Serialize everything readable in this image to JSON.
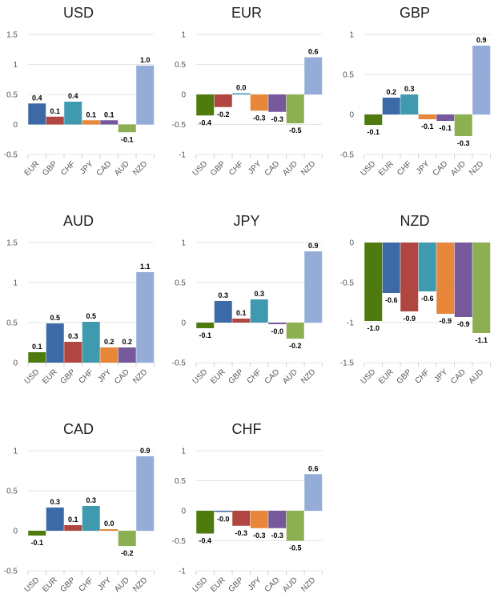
{
  "colors": {
    "USD": "#4f7a0e",
    "EUR": "#3d6aa6",
    "GBP": "#b0463f",
    "CHF": "#3f9ab0",
    "JPY": "#e8873a",
    "CAD": "#76599b",
    "AUD": "#8caf52",
    "NZD": "#94acd8"
  },
  "chart_data": [
    {
      "type": "bar",
      "title": "USD",
      "categories": [
        "EUR",
        "GBP",
        "CHF",
        "JPY",
        "CAD",
        "AUD",
        "NZD"
      ],
      "values": [
        0.35,
        0.13,
        0.38,
        0.07,
        0.07,
        -0.13,
        0.98
      ],
      "labels": [
        "0.4",
        "0.1",
        "0.4",
        "0.1",
        "0.1",
        "-0.1",
        "1.0"
      ],
      "ylim": [
        -0.5,
        1.5
      ],
      "ticks": [
        "-0.5",
        "0",
        "0.5",
        "1",
        "1.5"
      ],
      "tick_values": [
        -0.5,
        0,
        0.5,
        1,
        1.5
      ]
    },
    {
      "type": "bar",
      "title": "EUR",
      "categories": [
        "USD",
        "GBP",
        "CHF",
        "JPY",
        "CAD",
        "AUD",
        "NZD"
      ],
      "values": [
        -0.35,
        -0.21,
        0.02,
        -0.27,
        -0.29,
        -0.48,
        0.62
      ],
      "labels": [
        "-0.4",
        "-0.2",
        "0.0",
        "-0.3",
        "-0.3",
        "-0.5",
        "0.6"
      ],
      "ylim": [
        -1,
        1
      ],
      "ticks": [
        "-1",
        "-0.5",
        "0",
        "0.5",
        "1"
      ],
      "tick_values": [
        -1,
        -0.5,
        0,
        0.5,
        1
      ]
    },
    {
      "type": "bar",
      "title": "GBP",
      "categories": [
        "USD",
        "EUR",
        "CHF",
        "JPY",
        "CAD",
        "AUD",
        "NZD"
      ],
      "values": [
        -0.13,
        0.21,
        0.25,
        -0.06,
        -0.08,
        -0.27,
        0.86
      ],
      "labels": [
        "-0.1",
        "0.2",
        "0.3",
        "-0.1",
        "-0.1",
        "-0.3",
        "0.9"
      ],
      "ylim": [
        -0.5,
        1
      ],
      "ticks": [
        "-0.5",
        "0",
        "0.5",
        "1"
      ],
      "tick_values": [
        -0.5,
        0,
        0.5,
        1
      ]
    },
    {
      "type": "bar",
      "title": "AUD",
      "categories": [
        "USD",
        "EUR",
        "GBP",
        "CHF",
        "JPY",
        "CAD",
        "NZD"
      ],
      "values": [
        0.13,
        0.49,
        0.26,
        0.51,
        0.19,
        0.19,
        1.13
      ],
      "labels": [
        "0.1",
        "0.5",
        "0.3",
        "0.5",
        "0.2",
        "0.2",
        "1.1"
      ],
      "ylim": [
        0,
        1.5
      ],
      "ticks": [
        "0",
        "0.5",
        "1",
        "1.5"
      ],
      "tick_values": [
        0,
        0.5,
        1,
        1.5
      ]
    },
    {
      "type": "bar",
      "title": "JPY",
      "categories": [
        "USD",
        "EUR",
        "GBP",
        "CHF",
        "CAD",
        "AUD",
        "NZD"
      ],
      "values": [
        -0.07,
        0.27,
        0.05,
        0.29,
        -0.02,
        -0.2,
        0.89
      ],
      "labels": [
        "-0.1",
        "0.3",
        "0.1",
        "0.3",
        "-0.0",
        "-0.2",
        "0.9"
      ],
      "ylim": [
        -0.5,
        1
      ],
      "ticks": [
        "-0.5",
        "0",
        "0.5",
        "1"
      ],
      "tick_values": [
        -0.5,
        0,
        0.5,
        1
      ]
    },
    {
      "type": "bar",
      "title": "NZD",
      "categories": [
        "USD",
        "EUR",
        "GBP",
        "CHF",
        "JPY",
        "CAD",
        "AUD"
      ],
      "values": [
        -0.98,
        -0.63,
        -0.86,
        -0.61,
        -0.89,
        -0.93,
        -1.13
      ],
      "labels": [
        "-1.0",
        "-0.6",
        "-0.9",
        "-0.6",
        "-0.9",
        "-0.9",
        "-1.1"
      ],
      "ylim": [
        -1.5,
        0
      ],
      "ticks": [
        "-1.5",
        "-1",
        "-0.5",
        "0"
      ],
      "tick_values": [
        -1.5,
        -1,
        -0.5,
        0
      ]
    },
    {
      "type": "bar",
      "title": "CAD",
      "categories": [
        "USD",
        "EUR",
        "GBP",
        "CHF",
        "JPY",
        "AUD",
        "NZD"
      ],
      "values": [
        -0.06,
        0.29,
        0.07,
        0.31,
        0.02,
        -0.19,
        0.93
      ],
      "labels": [
        "-0.1",
        "0.3",
        "0.1",
        "0.3",
        "0.0",
        "-0.2",
        "0.9"
      ],
      "ylim": [
        -0.5,
        1
      ],
      "ticks": [
        "-0.5",
        "0",
        "0.5",
        "1"
      ],
      "tick_values": [
        -0.5,
        0,
        0.5,
        1
      ]
    },
    {
      "type": "bar",
      "title": "CHF",
      "categories": [
        "USD",
        "EUR",
        "GBP",
        "JPY",
        "CAD",
        "AUD",
        "NZD"
      ],
      "values": [
        -0.38,
        -0.02,
        -0.25,
        -0.29,
        -0.29,
        -0.5,
        0.61
      ],
      "labels": [
        "-0.4",
        "-0.0",
        "-0.3",
        "-0.3",
        "-0.3",
        "-0.5",
        "0.6"
      ],
      "ylim": [
        -1,
        1
      ],
      "ticks": [
        "-1",
        "-0.5",
        "0",
        "0.5",
        "1"
      ],
      "tick_values": [
        -1,
        -0.5,
        0,
        0.5,
        1
      ]
    }
  ]
}
